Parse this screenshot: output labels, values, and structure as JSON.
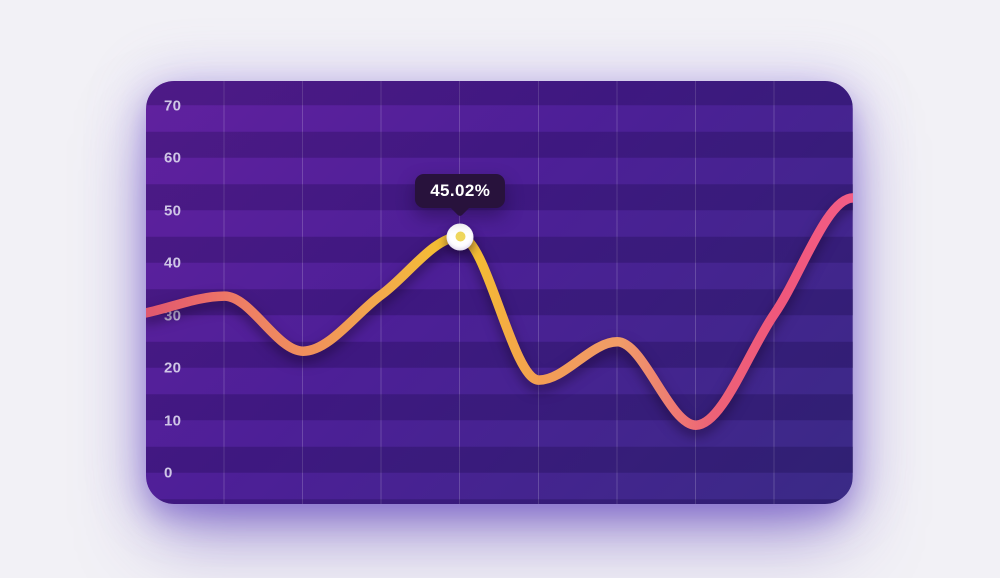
{
  "page": {
    "background": "#f2f1f6"
  },
  "card": {
    "bg_gradient": [
      "#61219f",
      "#3a2a86"
    ],
    "stripe_overlay": "rgba(10,0,48,0.22)",
    "gridline_color": "rgba(255,255,255,0.18)",
    "label_color": "#cfc6e6"
  },
  "chart_data": {
    "type": "line",
    "title": "",
    "xlabel": "",
    "ylabel": "",
    "yticks": [
      "70",
      "60",
      "50",
      "40",
      "30",
      "20",
      "10",
      "0"
    ],
    "ylim": [
      0,
      75
    ],
    "grid": "vertical-lines-and-horizontal-stripes",
    "legend": "none",
    "x": [
      0,
      1,
      2,
      3,
      4,
      5,
      6,
      7,
      8,
      9
    ],
    "series": [
      {
        "name": "percentage",
        "values": [
          30.5,
          33.7,
          23.2,
          34.0,
          45.02,
          17.7,
          25.0,
          9.1,
          30.3,
          52.4
        ]
      }
    ],
    "highlight": {
      "index": 4,
      "value": 45.02,
      "label": "45.02%"
    },
    "tooltip_bg": "#28123c",
    "tooltip_text_color": "#ffffff",
    "marker_outer_color": "#ffffff",
    "marker_inner_color": "#efd75c",
    "line_gradient": [
      {
        "offset": 0.0,
        "color": "#e0586f"
      },
      {
        "offset": 0.08,
        "color": "#e96a69"
      },
      {
        "offset": 0.14,
        "color": "#ee7f64"
      },
      {
        "offset": 0.23,
        "color": "#f0905c"
      },
      {
        "offset": 0.34,
        "color": "#f2ab4a"
      },
      {
        "offset": 0.445,
        "color": "#f5c52b"
      },
      {
        "offset": 0.5,
        "color": "#f4b03f"
      },
      {
        "offset": 0.56,
        "color": "#f39d55"
      },
      {
        "offset": 0.67,
        "color": "#f09c68"
      },
      {
        "offset": 0.74,
        "color": "#ee7e72"
      },
      {
        "offset": 0.8,
        "color": "#ed6277"
      },
      {
        "offset": 0.9,
        "color": "#f0577c"
      },
      {
        "offset": 1.0,
        "color": "#f35e86"
      }
    ]
  }
}
